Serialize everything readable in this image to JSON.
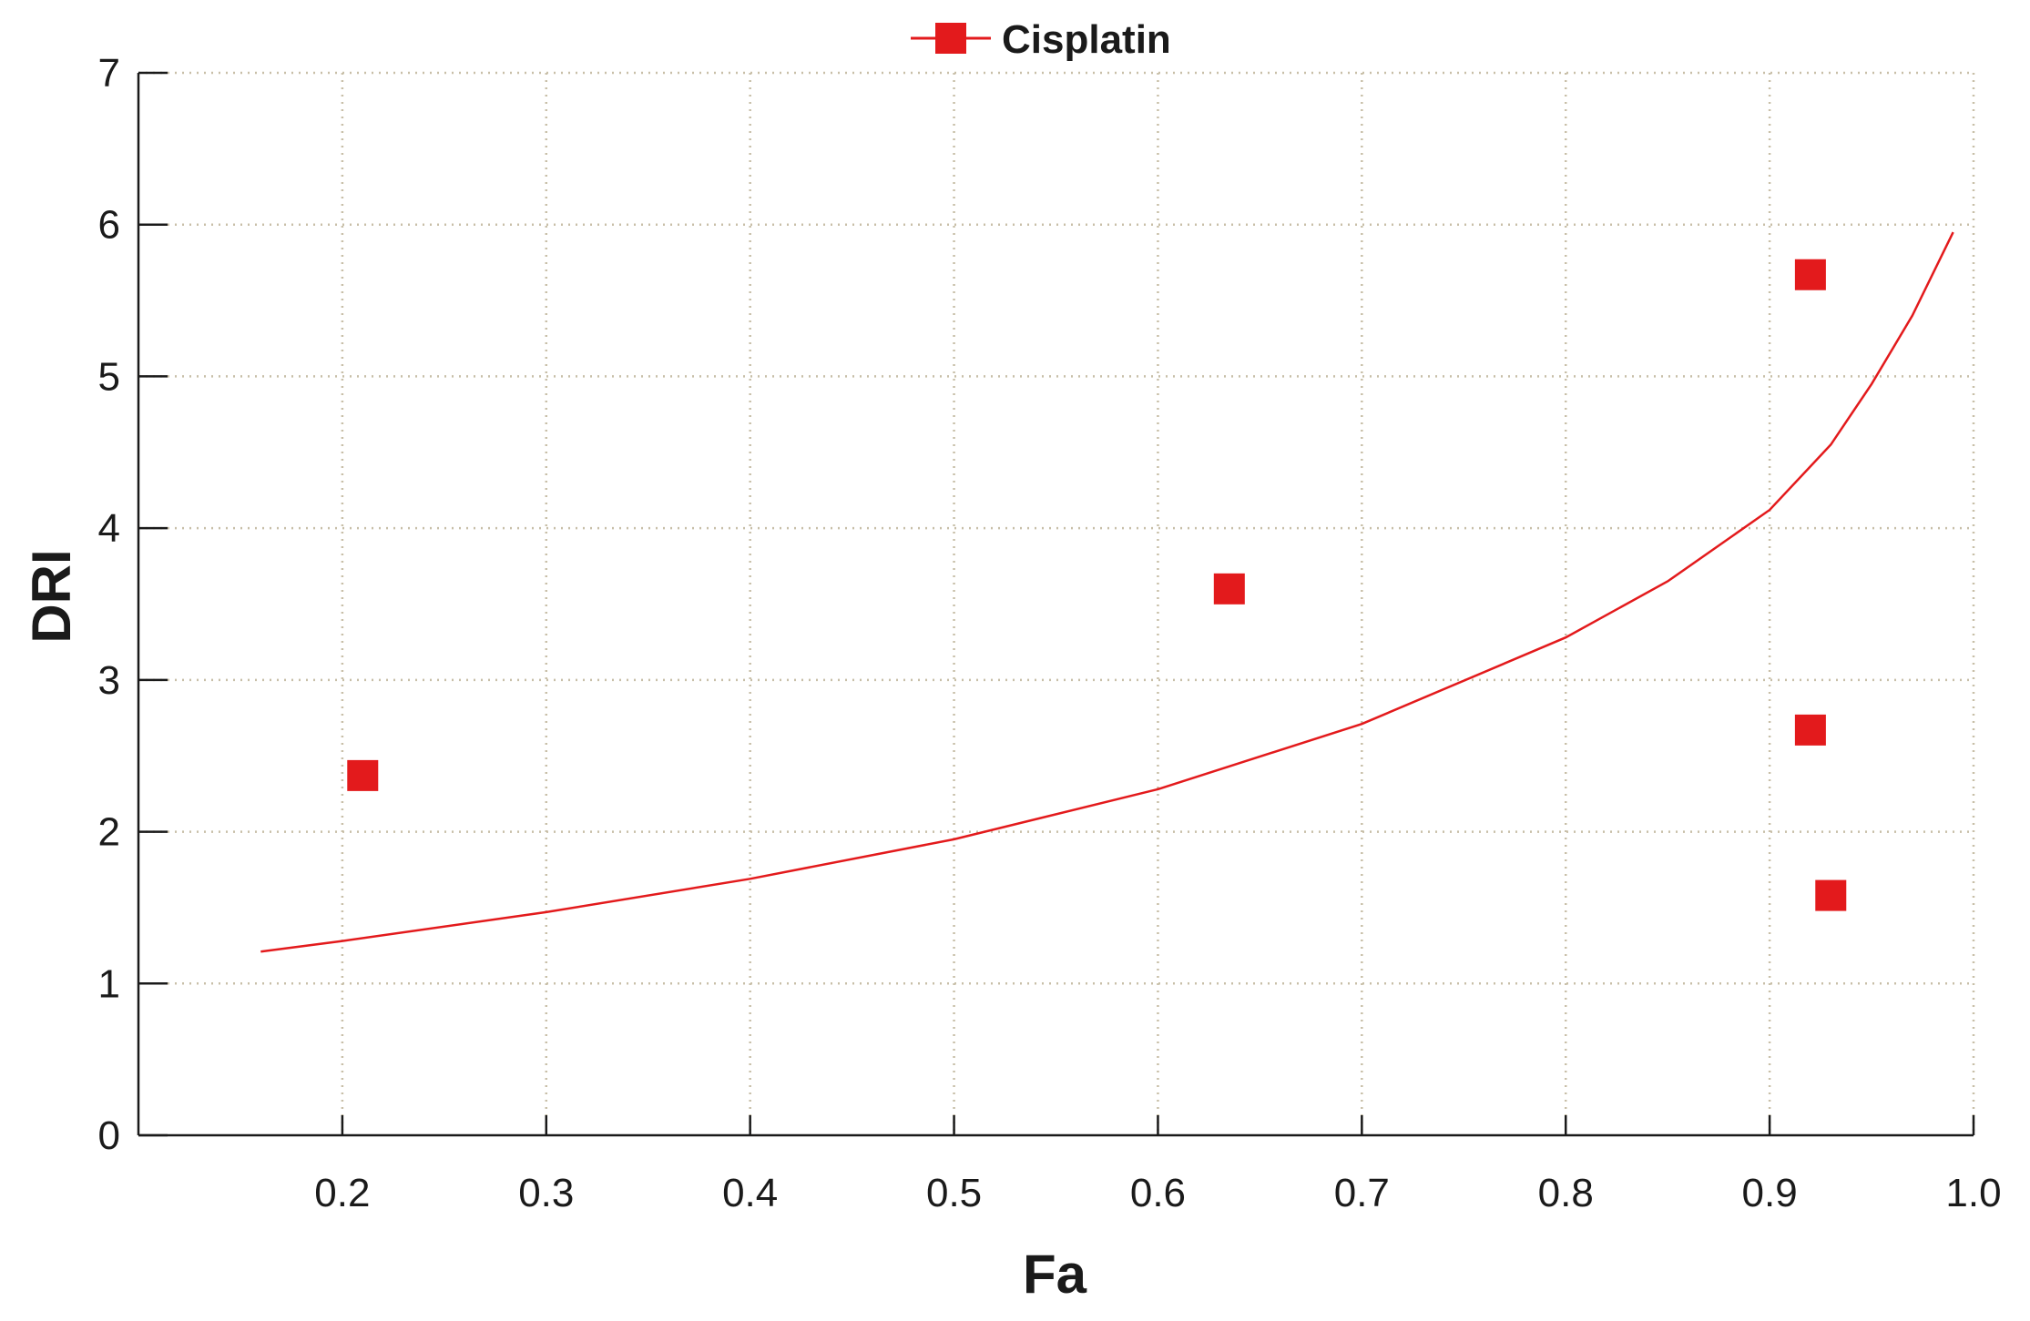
{
  "chart_data": {
    "type": "scatter",
    "title": "",
    "xlabel": "Fa",
    "ylabel": "DRI",
    "xlim": [
      0.1,
      1.0
    ],
    "ylim": [
      0,
      7
    ],
    "x_ticks": [
      0.2,
      0.3,
      0.4,
      0.5,
      0.6,
      0.7,
      0.8,
      0.9,
      1.0
    ],
    "x_tick_labels": [
      "0.2",
      "0.3",
      "0.4",
      "0.5",
      "0.6",
      "0.7",
      "0.8",
      "0.9",
      "1.0"
    ],
    "y_ticks": [
      0,
      1,
      2,
      3,
      4,
      5,
      6,
      7
    ],
    "y_tick_labels": [
      "0",
      "1",
      "2",
      "3",
      "4",
      "5",
      "6",
      "7"
    ],
    "grid": true,
    "legend_position": "top-center",
    "series": [
      {
        "name": "Cisplatin",
        "color": "#e31a1c",
        "marker": "square",
        "points": [
          {
            "x": 0.21,
            "y": 2.37
          },
          {
            "x": 0.635,
            "y": 3.6
          },
          {
            "x": 0.92,
            "y": 5.67
          },
          {
            "x": 0.92,
            "y": 2.67
          },
          {
            "x": 0.93,
            "y": 1.58
          }
        ],
        "fit_curve": {
          "x": [
            0.16,
            0.2,
            0.3,
            0.4,
            0.5,
            0.6,
            0.7,
            0.8,
            0.85,
            0.9,
            0.93,
            0.95,
            0.97,
            0.99
          ],
          "y": [
            1.21,
            1.28,
            1.47,
            1.69,
            1.95,
            2.28,
            2.71,
            3.28,
            3.65,
            4.12,
            4.55,
            4.95,
            5.4,
            5.95
          ]
        }
      }
    ]
  }
}
